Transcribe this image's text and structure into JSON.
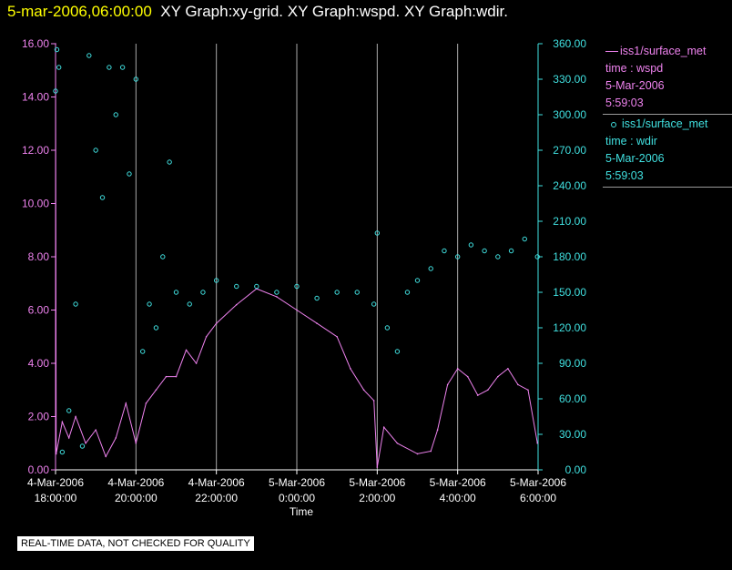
{
  "header": {
    "timestamp": "5-mar-2006,06:00:00",
    "graph_titles": "XY Graph:xy-grid.  XY Graph:wspd.  XY Graph:wdir."
  },
  "legend": {
    "entries": [
      {
        "marker": "line",
        "color": "#ee82ee",
        "lines": [
          "iss1/surface_met",
          "time : wspd",
          "5-Mar-2006",
          "5:59:03"
        ]
      },
      {
        "marker": "circle",
        "color": "#40e0e0",
        "lines": [
          "iss1/surface_met",
          "time : wdir",
          "5-Mar-2006",
          "5:59:03"
        ]
      }
    ]
  },
  "footer": {
    "note": "REAL-TIME DATA, NOT CHECKED FOR QUALITY"
  },
  "colors": {
    "background": "#000000",
    "wspd": "#ee82ee",
    "wdir": "#40e0e0",
    "header_timestamp": "#ffff00",
    "header_titles": "#ffffff",
    "x_axis": "#ffffff",
    "grid": "#aaaaaa"
  },
  "chart_data": {
    "type": "line",
    "xlabel": "Time",
    "x_ticks": [
      {
        "hour": 0,
        "line1": "4-Mar-2006",
        "line2": "18:00:00"
      },
      {
        "hour": 2,
        "line1": "4-Mar-2006",
        "line2": "20:00:00"
      },
      {
        "hour": 4,
        "line1": "4-Mar-2006",
        "line2": "22:00:00"
      },
      {
        "hour": 6,
        "line1": "5-Mar-2006",
        "line2": "0:00:00"
      },
      {
        "hour": 8,
        "line1": "5-Mar-2006",
        "line2": "2:00:00"
      },
      {
        "hour": 10,
        "line1": "5-Mar-2006",
        "line2": "4:00:00"
      },
      {
        "hour": 12,
        "line1": "5-Mar-2006",
        "line2": "6:00:00"
      }
    ],
    "x_range": [
      "4-Mar-2006 18:00:00",
      "5-Mar-2006 6:00:00"
    ],
    "grid": "vertical lines at each x tick",
    "y_left": {
      "range": [
        0,
        16
      ],
      "ticks": [
        "0.00",
        "2.00",
        "4.00",
        "6.00",
        "8.00",
        "10.00",
        "12.00",
        "14.00",
        "16.00"
      ],
      "color": "#ee82ee"
    },
    "y_right": {
      "range": [
        0,
        360
      ],
      "ticks": [
        "0.00",
        "30.00",
        "60.00",
        "90.00",
        "120.00",
        "150.00",
        "180.00",
        "210.00",
        "240.00",
        "270.00",
        "300.00",
        "330.00",
        "360.00"
      ],
      "color": "#40e0e0"
    },
    "series": [
      {
        "legend_text": "iss1/surface_met time : wspd",
        "style": "line",
        "axis": "left",
        "points": [
          [
            "4-Mar-2006 18:00",
            16.0
          ],
          [
            "4-Mar-2006 18:01",
            0.6
          ],
          [
            "4-Mar-2006 18:10",
            1.8
          ],
          [
            "4-Mar-2006 18:20",
            1.2
          ],
          [
            "4-Mar-2006 18:30",
            2.0
          ],
          [
            "4-Mar-2006 18:45",
            1.0
          ],
          [
            "4-Mar-2006 19:00",
            1.5
          ],
          [
            "4-Mar-2006 19:15",
            0.5
          ],
          [
            "4-Mar-2006 19:30",
            1.2
          ],
          [
            "4-Mar-2006 19:45",
            2.5
          ],
          [
            "4-Mar-2006 20:00",
            1.0
          ],
          [
            "4-Mar-2006 20:15",
            2.5
          ],
          [
            "4-Mar-2006 20:30",
            3.0
          ],
          [
            "4-Mar-2006 20:45",
            3.5
          ],
          [
            "4-Mar-2006 21:00",
            3.5
          ],
          [
            "4-Mar-2006 21:15",
            4.5
          ],
          [
            "4-Mar-2006 21:30",
            4.0
          ],
          [
            "4-Mar-2006 21:45",
            5.0
          ],
          [
            "4-Mar-2006 22:00",
            5.5
          ],
          [
            "4-Mar-2006 22:30",
            6.2
          ],
          [
            "4-Mar-2006 23:00",
            6.8
          ],
          [
            "4-Mar-2006 23:30",
            6.5
          ],
          [
            "5-Mar-2006 0:00",
            6.0
          ],
          [
            "5-Mar-2006 0:30",
            5.5
          ],
          [
            "5-Mar-2006 1:00",
            5.0
          ],
          [
            "5-Mar-2006 1:20",
            3.8
          ],
          [
            "5-Mar-2006 1:40",
            3.0
          ],
          [
            "5-Mar-2006 1:55",
            2.6
          ],
          [
            "5-Mar-2006 2:00",
            0.1
          ],
          [
            "5-Mar-2006 2:10",
            1.6
          ],
          [
            "5-Mar-2006 2:30",
            1.0
          ],
          [
            "5-Mar-2006 3:00",
            0.6
          ],
          [
            "5-Mar-2006 3:20",
            0.7
          ],
          [
            "5-Mar-2006 3:30",
            1.5
          ],
          [
            "5-Mar-2006 3:45",
            3.2
          ],
          [
            "5-Mar-2006 4:00",
            3.8
          ],
          [
            "5-Mar-2006 4:15",
            3.5
          ],
          [
            "5-Mar-2006 4:30",
            2.8
          ],
          [
            "5-Mar-2006 4:45",
            3.0
          ],
          [
            "5-Mar-2006 5:00",
            3.5
          ],
          [
            "5-Mar-2006 5:15",
            3.8
          ],
          [
            "5-Mar-2006 5:30",
            3.2
          ],
          [
            "5-Mar-2006 5:45",
            3.0
          ],
          [
            "5-Mar-2006 5:59",
            1.0
          ]
        ]
      },
      {
        "legend_text": "iss1/surface_met time : wdir",
        "style": "circle markers",
        "axis": "right",
        "points": [
          [
            "4-Mar-2006 18:00",
            320
          ],
          [
            "4-Mar-2006 18:02",
            355
          ],
          [
            "4-Mar-2006 18:05",
            340
          ],
          [
            "4-Mar-2006 18:10",
            15
          ],
          [
            "4-Mar-2006 18:20",
            50
          ],
          [
            "4-Mar-2006 18:30",
            140
          ],
          [
            "4-Mar-2006 18:40",
            20
          ],
          [
            "4-Mar-2006 18:50",
            350
          ],
          [
            "4-Mar-2006 19:00",
            270
          ],
          [
            "4-Mar-2006 19:10",
            230
          ],
          [
            "4-Mar-2006 19:20",
            340
          ],
          [
            "4-Mar-2006 19:30",
            300
          ],
          [
            "4-Mar-2006 19:40",
            340
          ],
          [
            "4-Mar-2006 19:50",
            250
          ],
          [
            "4-Mar-2006 20:00",
            330
          ],
          [
            "4-Mar-2006 20:10",
            100
          ],
          [
            "4-Mar-2006 20:20",
            140
          ],
          [
            "4-Mar-2006 20:30",
            120
          ],
          [
            "4-Mar-2006 20:40",
            180
          ],
          [
            "4-Mar-2006 20:50",
            260
          ],
          [
            "4-Mar-2006 21:00",
            150
          ],
          [
            "4-Mar-2006 21:20",
            140
          ],
          [
            "4-Mar-2006 21:40",
            150
          ],
          [
            "4-Mar-2006 22:00",
            160
          ],
          [
            "4-Mar-2006 22:30",
            155
          ],
          [
            "4-Mar-2006 23:00",
            155
          ],
          [
            "4-Mar-2006 23:30",
            150
          ],
          [
            "5-Mar-2006 0:00",
            155
          ],
          [
            "5-Mar-2006 0:30",
            145
          ],
          [
            "5-Mar-2006 1:00",
            150
          ],
          [
            "5-Mar-2006 1:30",
            150
          ],
          [
            "5-Mar-2006 1:55",
            140
          ],
          [
            "5-Mar-2006 2:00",
            200
          ],
          [
            "5-Mar-2006 2:15",
            120
          ],
          [
            "5-Mar-2006 2:30",
            100
          ],
          [
            "5-Mar-2006 2:45",
            150
          ],
          [
            "5-Mar-2006 3:00",
            160
          ],
          [
            "5-Mar-2006 3:20",
            170
          ],
          [
            "5-Mar-2006 3:40",
            185
          ],
          [
            "5-Mar-2006 4:00",
            180
          ],
          [
            "5-Mar-2006 4:20",
            190
          ],
          [
            "5-Mar-2006 4:40",
            185
          ],
          [
            "5-Mar-2006 5:00",
            180
          ],
          [
            "5-Mar-2006 5:20",
            185
          ],
          [
            "5-Mar-2006 5:40",
            195
          ],
          [
            "5-Mar-2006 5:59",
            180
          ]
        ]
      }
    ]
  }
}
